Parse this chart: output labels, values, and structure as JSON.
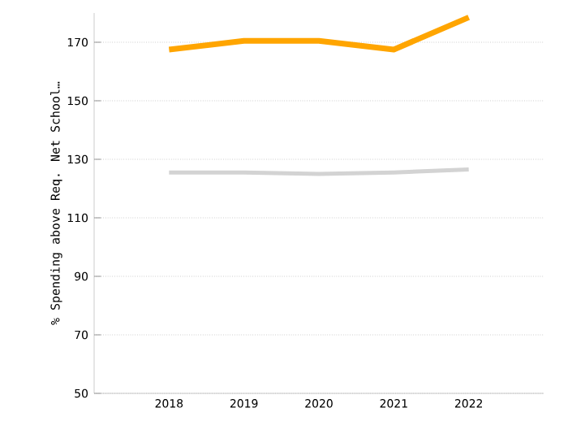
{
  "chart_data": {
    "type": "line",
    "ylabel": "% Spending above Req. Net School…",
    "categories": [
      "2018",
      "2019",
      "2020",
      "2021",
      "2022"
    ],
    "series": [
      {
        "color": "#ffa500",
        "values": [
          167.5,
          170.5,
          170.5,
          167.5,
          178.5
        ]
      },
      {
        "color": "#d3d3d3",
        "values": [
          125.5,
          125.5,
          125,
          125.5,
          126.5
        ]
      }
    ],
    "ylim": [
      50,
      180
    ],
    "yticks": [
      50,
      70,
      90,
      110,
      130,
      150,
      170
    ],
    "grid": "y",
    "marker": "none",
    "line_style": "solid"
  }
}
